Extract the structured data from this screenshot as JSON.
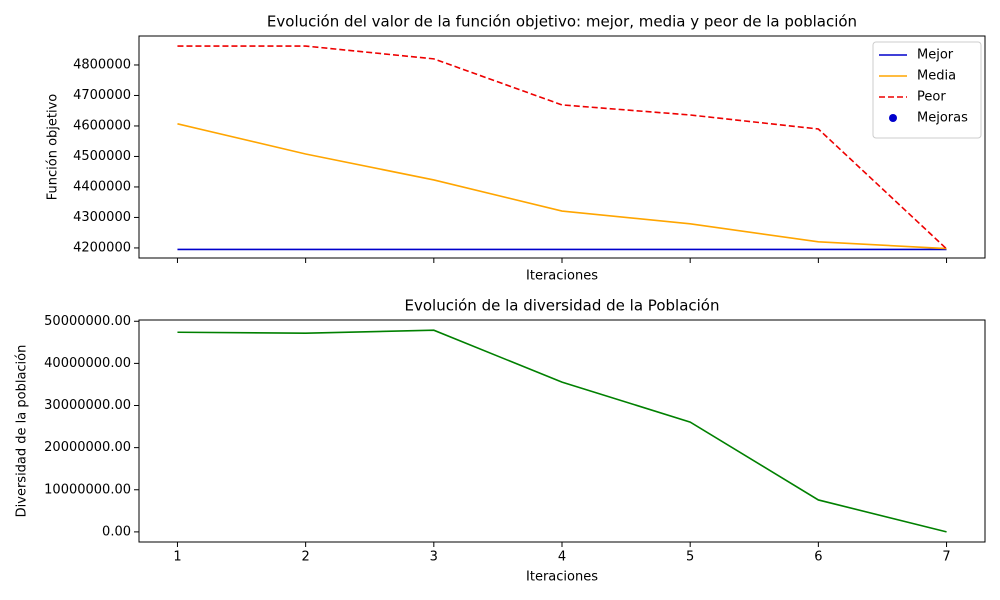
{
  "chart_data": [
    {
      "type": "line",
      "title": "Evolución del valor de la función objetivo: mejor, media y peor de la población",
      "xlabel": "Iteraciones",
      "ylabel": "Función objetivo",
      "x": [
        1,
        2,
        3,
        4,
        5,
        6,
        7
      ],
      "xlim": [
        0.7,
        7.3
      ],
      "xticks": [
        1,
        2,
        3,
        4,
        5,
        6,
        7
      ],
      "show_xtick_labels": false,
      "ylim": [
        4167000,
        4895000
      ],
      "yticks": [
        4200000,
        4300000,
        4400000,
        4500000,
        4600000,
        4700000,
        4800000
      ],
      "legend": "upper right",
      "series": [
        {
          "name": "Mejor",
          "color": "#0000cc",
          "linestyle": "solid",
          "values": [
            4195000,
            4195000,
            4195000,
            4195000,
            4195000,
            4195000,
            4195000
          ]
        },
        {
          "name": "Media",
          "color": "#ffa500",
          "linestyle": "solid",
          "values": [
            4607000,
            4508000,
            4423000,
            4321000,
            4279000,
            4220000,
            4198000
          ]
        },
        {
          "name": "Peor",
          "color": "#ee0000",
          "linestyle": "dashed",
          "values": [
            4862000,
            4862000,
            4820000,
            4669000,
            4636000,
            4590000,
            4197000
          ]
        },
        {
          "name": "Mejoras",
          "color": "#0000cc",
          "linestyle": "none",
          "marker": "o",
          "values": [
            null,
            null,
            null,
            null,
            null,
            null,
            null
          ]
        }
      ]
    },
    {
      "type": "line",
      "title": "Evolución de la diversidad de la Población",
      "xlabel": "Iteraciones",
      "ylabel": "Diversidad de la población",
      "x": [
        1,
        2,
        3,
        4,
        5,
        6,
        7
      ],
      "xlim": [
        0.7,
        7.3
      ],
      "xticks": [
        1,
        2,
        3,
        4,
        5,
        6,
        7
      ],
      "show_xtick_labels": true,
      "ylim": [
        -2400000,
        50300000
      ],
      "yticks": [
        {
          "value": 0,
          "label": "0.00"
        },
        {
          "value": 10000000,
          "label": "10000000.00"
        },
        {
          "value": 20000000,
          "label": "20000000.00"
        },
        {
          "value": 30000000,
          "label": "30000000.00"
        },
        {
          "value": 40000000,
          "label": "40000000.00"
        },
        {
          "value": 50000000,
          "label": "50000000.00"
        }
      ],
      "series": [
        {
          "color": "#008000",
          "linestyle": "solid",
          "values": [
            47390000,
            47160000,
            47870000,
            35550000,
            26070000,
            7580000,
            0
          ]
        }
      ]
    }
  ]
}
